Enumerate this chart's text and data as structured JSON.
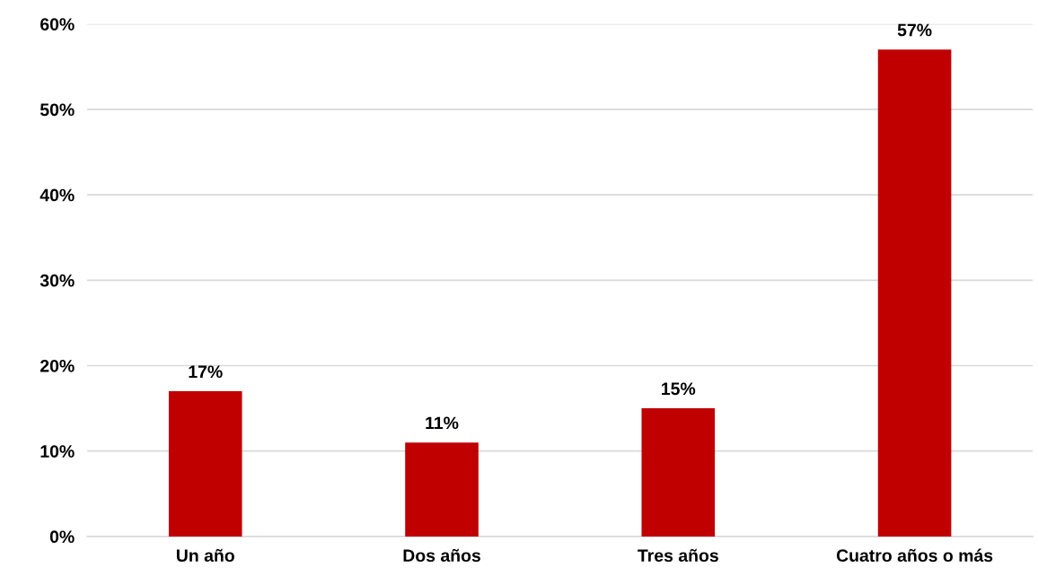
{
  "chart_data": {
    "type": "bar",
    "categories": [
      "Un año",
      "Dos años",
      "Tres años",
      "Cuatro años o más"
    ],
    "values": [
      17,
      11,
      15,
      57
    ],
    "value_labels": [
      "17%",
      "11%",
      "15%",
      "57%"
    ],
    "color": "#c00000",
    "ylim": [
      0,
      60
    ],
    "yticks": [
      {
        "value": 0,
        "label": "0%"
      },
      {
        "value": 10,
        "label": "10%"
      },
      {
        "value": 20,
        "label": "20%"
      },
      {
        "value": 30,
        "label": "30%"
      },
      {
        "value": 40,
        "label": "40%"
      },
      {
        "value": 50,
        "label": "50%"
      },
      {
        "value": 60,
        "label": "60%"
      }
    ],
    "grid": "y",
    "legend": false
  }
}
